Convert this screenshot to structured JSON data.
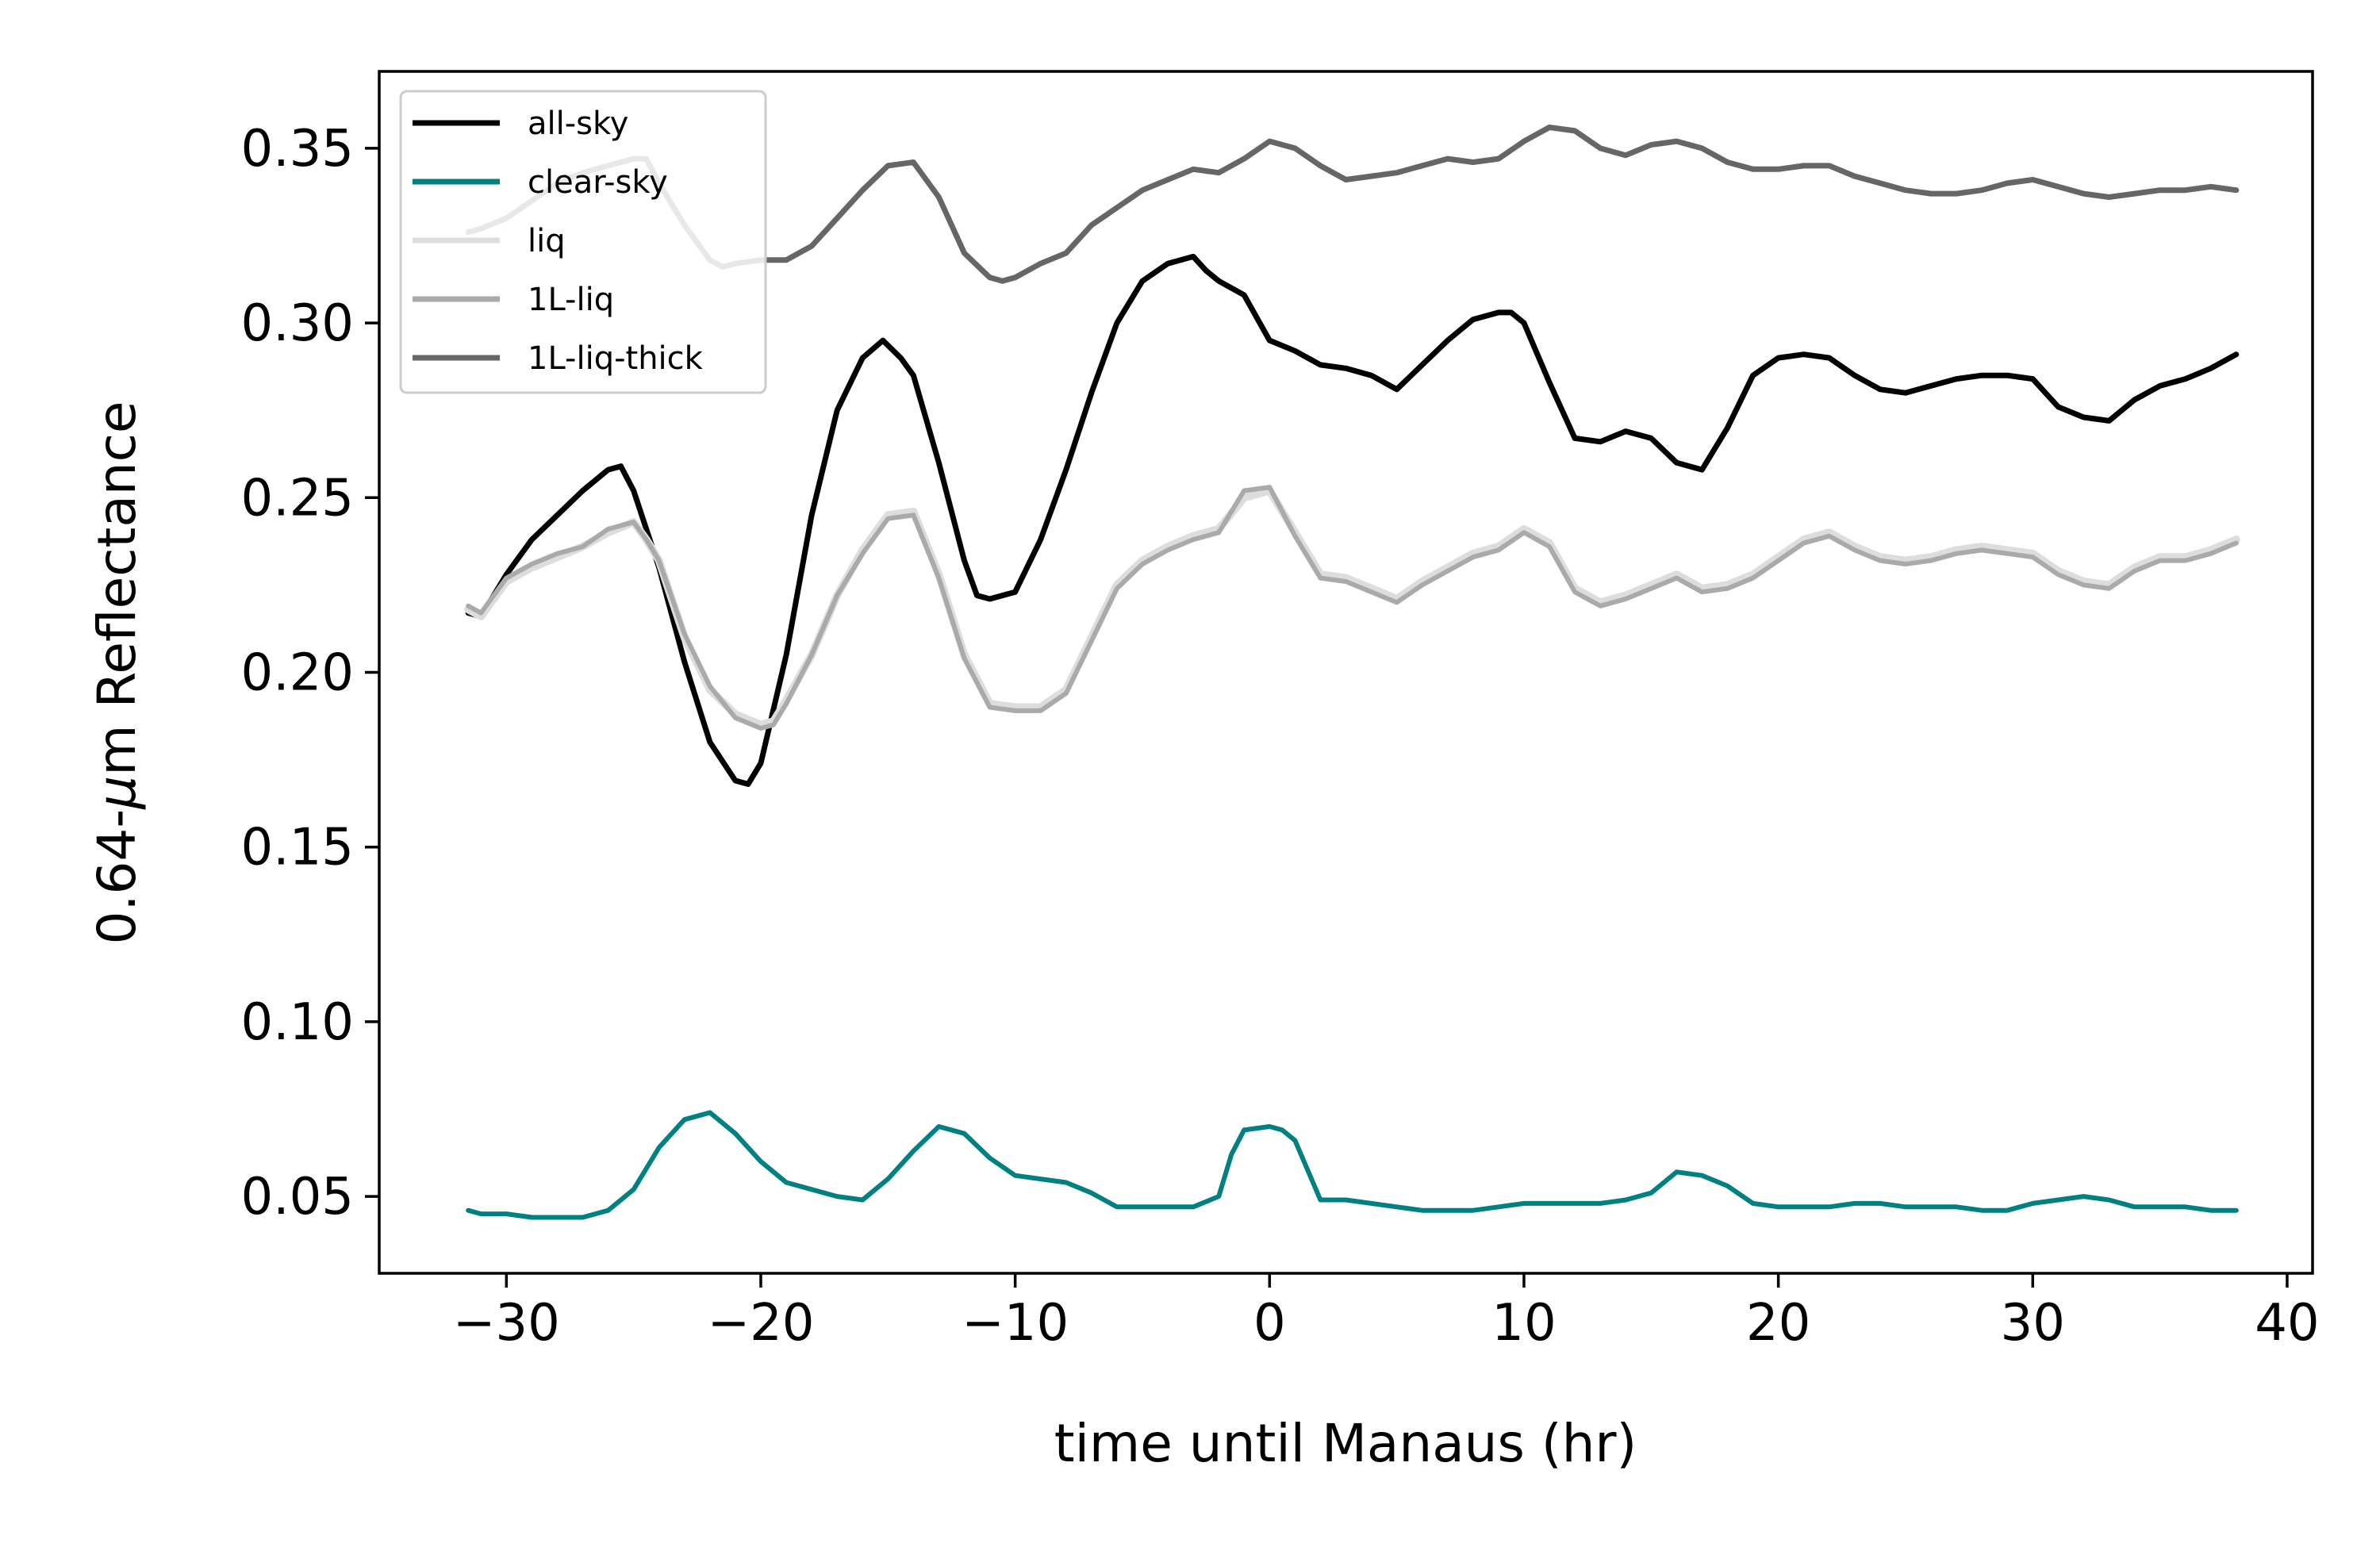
{
  "chart_data": {
    "type": "line",
    "xlabel": "time until Manaus (hr)",
    "ylabel_prefix": "0.64-",
    "ylabel_mu": "μ",
    "ylabel_suffix": "m Reflectance",
    "xlim": [
      -35,
      41
    ],
    "ylim": [
      0.028,
      0.372
    ],
    "xticks": [
      -30,
      -20,
      -10,
      0,
      10,
      20,
      30,
      40
    ],
    "xtick_labels": [
      "−30",
      "−20",
      "−10",
      "0",
      "10",
      "20",
      "30",
      "40"
    ],
    "yticks": [
      0.05,
      0.1,
      0.15,
      0.2,
      0.25,
      0.3,
      0.35
    ],
    "ytick_labels": [
      "0.05",
      "0.10",
      "0.15",
      "0.20",
      "0.25",
      "0.30",
      "0.35"
    ],
    "legend_position": "top-left",
    "series": [
      {
        "name": "all-sky",
        "color": "#000000",
        "x": [
          -31.5,
          -31,
          -30,
          -29,
          -28,
          -27,
          -26,
          -25.5,
          -25,
          -24,
          -23,
          -22,
          -21,
          -20.5,
          -20,
          -19,
          -18,
          -17,
          -16,
          -15.2,
          -14.5,
          -14,
          -13,
          -12,
          -11.5,
          -11,
          -10,
          -9,
          -8,
          -7,
          -6,
          -5,
          -4,
          -3,
          -2.5,
          -2,
          -1,
          0,
          1,
          2,
          3,
          4,
          5,
          6,
          7,
          8,
          9,
          9.5,
          10,
          11,
          12,
          13,
          14,
          15,
          16,
          17,
          18,
          19,
          20,
          21,
          22,
          23,
          24,
          25,
          26,
          27,
          28,
          29,
          30,
          31,
          32,
          33,
          34,
          35,
          36,
          37,
          38
        ],
        "y": [
          0.217,
          0.216,
          0.228,
          0.238,
          0.245,
          0.252,
          0.258,
          0.259,
          0.252,
          0.23,
          0.203,
          0.18,
          0.169,
          0.168,
          0.174,
          0.205,
          0.245,
          0.275,
          0.29,
          0.295,
          0.29,
          0.285,
          0.26,
          0.232,
          0.222,
          0.221,
          0.223,
          0.238,
          0.258,
          0.28,
          0.3,
          0.312,
          0.317,
          0.319,
          0.315,
          0.312,
          0.308,
          0.295,
          0.292,
          0.288,
          0.287,
          0.285,
          0.281,
          0.288,
          0.295,
          0.301,
          0.303,
          0.303,
          0.3,
          0.283,
          0.267,
          0.266,
          0.269,
          0.267,
          0.26,
          0.258,
          0.27,
          0.285,
          0.29,
          0.291,
          0.29,
          0.285,
          0.281,
          0.28,
          0.282,
          0.284,
          0.285,
          0.285,
          0.284,
          0.276,
          0.273,
          0.272,
          0.278,
          0.282,
          0.284,
          0.287,
          0.291
        ]
      },
      {
        "name": "clear-sky",
        "color": "#008080",
        "x": [
          -31.5,
          -31,
          -30,
          -29,
          -28,
          -27,
          -26,
          -25,
          -24,
          -23,
          -22,
          -21,
          -20,
          -19,
          -18,
          -17,
          -16,
          -15,
          -14,
          -13,
          -12,
          -11,
          -10,
          -9,
          -8,
          -7,
          -6,
          -5,
          -4,
          -3,
          -2,
          -1.5,
          -1,
          0,
          0.5,
          1,
          2,
          3,
          4,
          5,
          6,
          7,
          8,
          9,
          10,
          11,
          12,
          13,
          14,
          15,
          16,
          17,
          18,
          19,
          20,
          21,
          22,
          23,
          24,
          25,
          26,
          27,
          28,
          29,
          30,
          31,
          32,
          33,
          34,
          35,
          36,
          37,
          38
        ],
        "y": [
          0.046,
          0.045,
          0.045,
          0.044,
          0.044,
          0.044,
          0.046,
          0.052,
          0.064,
          0.072,
          0.074,
          0.068,
          0.06,
          0.054,
          0.052,
          0.05,
          0.049,
          0.055,
          0.063,
          0.07,
          0.068,
          0.061,
          0.056,
          0.055,
          0.054,
          0.051,
          0.047,
          0.047,
          0.047,
          0.047,
          0.05,
          0.062,
          0.069,
          0.07,
          0.069,
          0.066,
          0.049,
          0.049,
          0.048,
          0.047,
          0.046,
          0.046,
          0.046,
          0.047,
          0.048,
          0.048,
          0.048,
          0.048,
          0.049,
          0.051,
          0.057,
          0.056,
          0.053,
          0.048,
          0.047,
          0.047,
          0.047,
          0.048,
          0.048,
          0.047,
          0.047,
          0.047,
          0.046,
          0.046,
          0.048,
          0.049,
          0.05,
          0.049,
          0.047,
          0.047,
          0.047,
          0.046,
          0.046
        ]
      },
      {
        "name": "liq",
        "color": "#dddddd",
        "x": [
          -31.5,
          -31,
          -30,
          -29,
          -28,
          -27,
          -26,
          -25,
          -24.5,
          -24,
          -23,
          -22,
          -21,
          -20,
          -19.5,
          -19,
          -18,
          -17,
          -16,
          -15,
          -14,
          -13,
          -12,
          -11,
          -10,
          -9,
          -8,
          -7,
          -6,
          -5,
          -4,
          -3,
          -2,
          -1,
          0,
          1,
          2,
          3,
          4,
          5,
          6,
          7,
          8,
          9,
          10,
          11,
          12,
          13,
          14,
          15,
          16,
          17,
          18,
          19,
          20,
          21,
          22,
          23,
          24,
          25,
          26,
          27,
          28,
          29,
          30,
          31,
          32,
          33,
          34,
          35,
          36,
          37,
          38
        ],
        "y": [
          0.218,
          0.216,
          0.226,
          0.23,
          0.233,
          0.236,
          0.24,
          0.243,
          0.238,
          0.232,
          0.21,
          0.195,
          0.188,
          0.185,
          0.186,
          0.192,
          0.205,
          0.222,
          0.235,
          0.245,
          0.246,
          0.228,
          0.205,
          0.191,
          0.19,
          0.19,
          0.195,
          0.21,
          0.225,
          0.232,
          0.236,
          0.239,
          0.241,
          0.25,
          0.252,
          0.24,
          0.228,
          0.227,
          0.224,
          0.221,
          0.226,
          0.23,
          0.234,
          0.236,
          0.241,
          0.237,
          0.224,
          0.22,
          0.222,
          0.225,
          0.228,
          0.224,
          0.225,
          0.228,
          0.233,
          0.238,
          0.24,
          0.236,
          0.233,
          0.232,
          0.233,
          0.235,
          0.236,
          0.235,
          0.234,
          0.229,
          0.226,
          0.225,
          0.23,
          0.233,
          0.233,
          0.235,
          0.238
        ]
      },
      {
        "name": "1L-liq",
        "color": "#aaaaaa",
        "x": [
          -31.5,
          -31,
          -30,
          -29,
          -28,
          -27,
          -26,
          -25,
          -24.5,
          -24,
          -23,
          -22,
          -21,
          -20,
          -19.5,
          -19,
          -18,
          -17,
          -16,
          -15,
          -14,
          -13,
          -12,
          -11,
          -10,
          -9,
          -8,
          -7,
          -6,
          -5,
          -4,
          -3,
          -2,
          -1,
          0,
          1,
          2,
          3,
          4,
          5,
          6,
          7,
          8,
          9,
          10,
          11,
          12,
          13,
          14,
          15,
          16,
          17,
          18,
          19,
          20,
          21,
          22,
          23,
          24,
          25,
          26,
          27,
          28,
          29,
          30,
          31,
          32,
          33,
          34,
          35,
          36,
          37,
          38
        ],
        "y": [
          0.219,
          0.217,
          0.227,
          0.231,
          0.234,
          0.236,
          0.241,
          0.243,
          0.238,
          0.232,
          0.211,
          0.196,
          0.187,
          0.184,
          0.185,
          0.191,
          0.205,
          0.222,
          0.234,
          0.244,
          0.245,
          0.227,
          0.204,
          0.19,
          0.189,
          0.189,
          0.194,
          0.209,
          0.224,
          0.231,
          0.235,
          0.238,
          0.24,
          0.252,
          0.253,
          0.239,
          0.227,
          0.226,
          0.223,
          0.22,
          0.225,
          0.229,
          0.233,
          0.235,
          0.24,
          0.236,
          0.223,
          0.219,
          0.221,
          0.224,
          0.227,
          0.223,
          0.224,
          0.227,
          0.232,
          0.237,
          0.239,
          0.235,
          0.232,
          0.231,
          0.232,
          0.234,
          0.235,
          0.234,
          0.233,
          0.228,
          0.225,
          0.224,
          0.229,
          0.232,
          0.232,
          0.234,
          0.237
        ]
      },
      {
        "name": "1L-liq-thick",
        "color": "#666666",
        "x": [
          -31.5,
          -31,
          -30,
          -29,
          -28,
          -27,
          -26,
          -25,
          -24.5,
          -24,
          -23,
          -22,
          -21.5,
          -21,
          -20,
          -19,
          -18,
          -17,
          -16,
          -15,
          -14,
          -13,
          -12,
          -11,
          -10.5,
          -10,
          -9,
          -8,
          -7,
          -6,
          -5,
          -4,
          -3,
          -2,
          -1,
          0,
          1,
          2,
          3,
          4,
          5,
          6,
          7,
          8,
          9,
          10,
          11,
          12,
          13,
          14,
          15,
          16,
          17,
          18,
          19,
          20,
          21,
          22,
          23,
          24,
          25,
          26,
          27,
          28,
          29,
          30,
          31,
          32,
          33,
          34,
          35,
          36,
          37,
          38
        ],
        "y": [
          0.326,
          0.327,
          0.33,
          0.335,
          0.34,
          0.343,
          0.345,
          0.347,
          0.347,
          0.34,
          0.328,
          0.318,
          0.316,
          0.317,
          0.318,
          0.318,
          0.322,
          0.33,
          0.338,
          0.345,
          0.346,
          0.336,
          0.32,
          0.313,
          0.312,
          0.313,
          0.317,
          0.32,
          0.328,
          0.333,
          0.338,
          0.341,
          0.344,
          0.343,
          0.347,
          0.352,
          0.35,
          0.345,
          0.341,
          0.342,
          0.343,
          0.345,
          0.347,
          0.346,
          0.347,
          0.352,
          0.356,
          0.355,
          0.35,
          0.348,
          0.351,
          0.352,
          0.35,
          0.346,
          0.344,
          0.344,
          0.345,
          0.345,
          0.342,
          0.34,
          0.338,
          0.337,
          0.337,
          0.338,
          0.34,
          0.341,
          0.339,
          0.337,
          0.336,
          0.337,
          0.338,
          0.338,
          0.339,
          0.338
        ]
      }
    ]
  }
}
